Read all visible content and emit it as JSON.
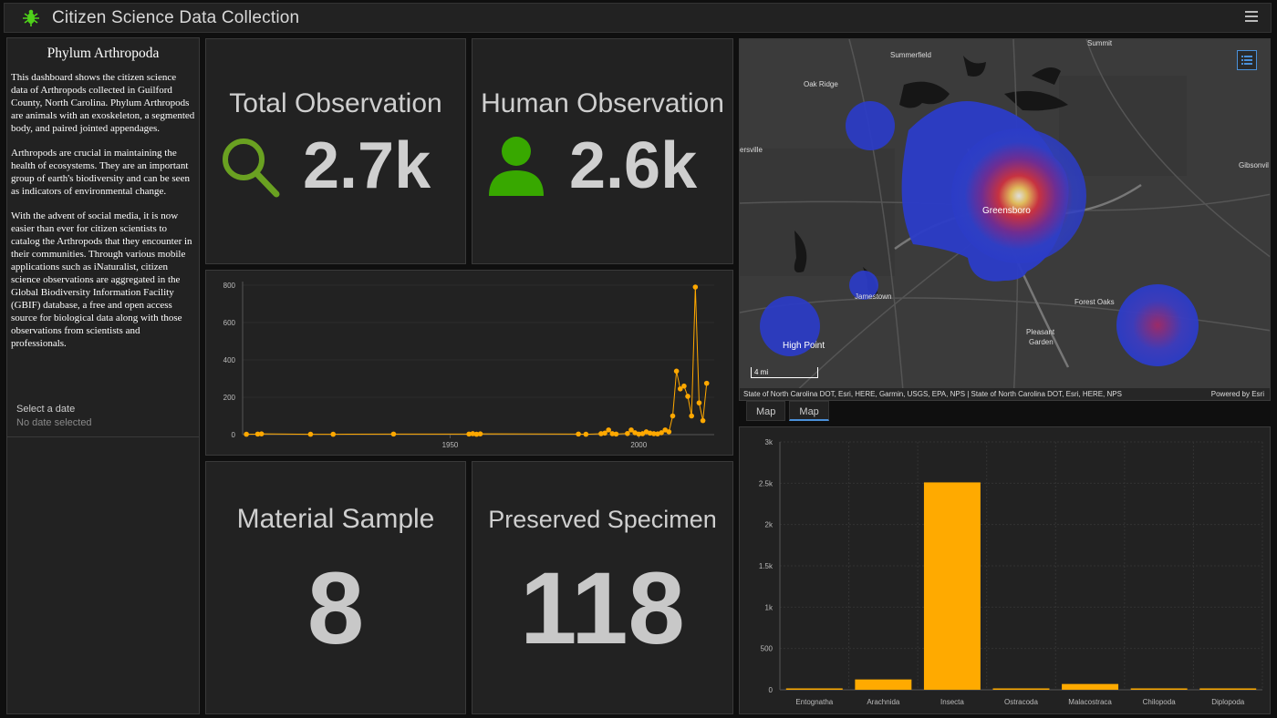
{
  "app": {
    "title": "Citizen Science Data Collection"
  },
  "sidebar": {
    "title": "Phylum Arthropoda",
    "paragraphs": [
      "This dashboard shows the citizen science data of Arthropods collected in Guilford County, North Carolina. Phylum Arthropods are animals with an exoskeleton, a segmented body, and paired jointed appendages.",
      "Arthropods are crucial in maintaining the health of ecosystems. They are an important group of earth's biodiversity and can be seen as indicators of environmental change.",
      "With the advent of social media, it is now easier than ever for citizen scientists to catalog the Arthropods that they encounter in their communities. Through various mobile applications such as iNaturalist, citizen science observations are aggregated in the Global Biodiversity Information Facility (GBIF) database, a free and open access source for biological data along with those observations from scientists and professionals."
    ],
    "date_label": "Select a date",
    "date_value": "No date selected"
  },
  "indicators": {
    "total": {
      "title": "Total Observation",
      "value": "2.7k",
      "color": "#6aa121"
    },
    "human": {
      "title": "Human Observation",
      "value": "2.6k",
      "color": "#38a800"
    },
    "material": {
      "title": "Material Sample",
      "value": "8"
    },
    "preserved": {
      "title": "Preserved Specimen",
      "value": "118"
    }
  },
  "map": {
    "labels": {
      "summit": "Summit",
      "summerfield": "Summerfield",
      "oak_ridge": "Oak Ridge",
      "ersville": "ersville",
      "gibsonville": "Gibsonvil",
      "greensboro": "Greensboro",
      "jamestown": "Jamestown",
      "forest_oaks": "Forest Oaks",
      "high_point": "High Point",
      "pleasant_garden_1": "Pleasant",
      "pleasant_garden_2": "Garden"
    },
    "scale": "4 mi",
    "attribution": "State of North Carolina DOT, Esri, HERE, Garmin, USGS, EPA, NPS | State of North Carolina DOT, Esri, HERE, NPS",
    "powered": "Powered by Esri"
  },
  "tabs": [
    "Map",
    "Map"
  ],
  "chart_data": [
    {
      "type": "line",
      "title": "",
      "xlabel": "",
      "ylabel": "",
      "ylim": [
        0,
        800
      ],
      "xlim": [
        1895,
        2020
      ],
      "x_ticks": [
        1950,
        2000
      ],
      "y_ticks": [
        0,
        200,
        400,
        600,
        800
      ],
      "x": [
        1896,
        1899,
        1900,
        1913,
        1919,
        1935,
        1955,
        1956,
        1957,
        1958,
        1984,
        1986,
        1990,
        1991,
        1992,
        1993,
        1994,
        1997,
        1998,
        1999,
        2000,
        2001,
        2002,
        2003,
        2004,
        2005,
        2006,
        2007,
        2008,
        2009,
        2010,
        2011,
        2012,
        2013,
        2014,
        2015,
        2016,
        2017,
        2018
      ],
      "y": [
        2,
        3,
        4,
        2,
        2,
        3,
        3,
        5,
        2,
        4,
        3,
        2,
        5,
        8,
        25,
        5,
        3,
        6,
        25,
        10,
        3,
        5,
        15,
        8,
        5,
        4,
        10,
        25,
        15,
        100,
        340,
        245,
        260,
        205,
        100,
        790,
        170,
        75,
        275
      ],
      "color": "#ffa800"
    },
    {
      "type": "bar",
      "categories": [
        "Entognatha",
        "Arachnida",
        "Insecta",
        "Ostracoda",
        "Malacostraca",
        "Chilopoda",
        "Diplopoda"
      ],
      "values": [
        5,
        125,
        2510,
        8,
        70,
        5,
        8
      ],
      "ylim": [
        0,
        3000
      ],
      "y_ticks": [
        0,
        500,
        1000,
        1500,
        2000,
        2500,
        3000
      ],
      "y_tick_labels": [
        "0",
        "500",
        "1k",
        "1.5k",
        "2k",
        "2.5k",
        "3k"
      ],
      "color": "#ffaa00"
    }
  ]
}
